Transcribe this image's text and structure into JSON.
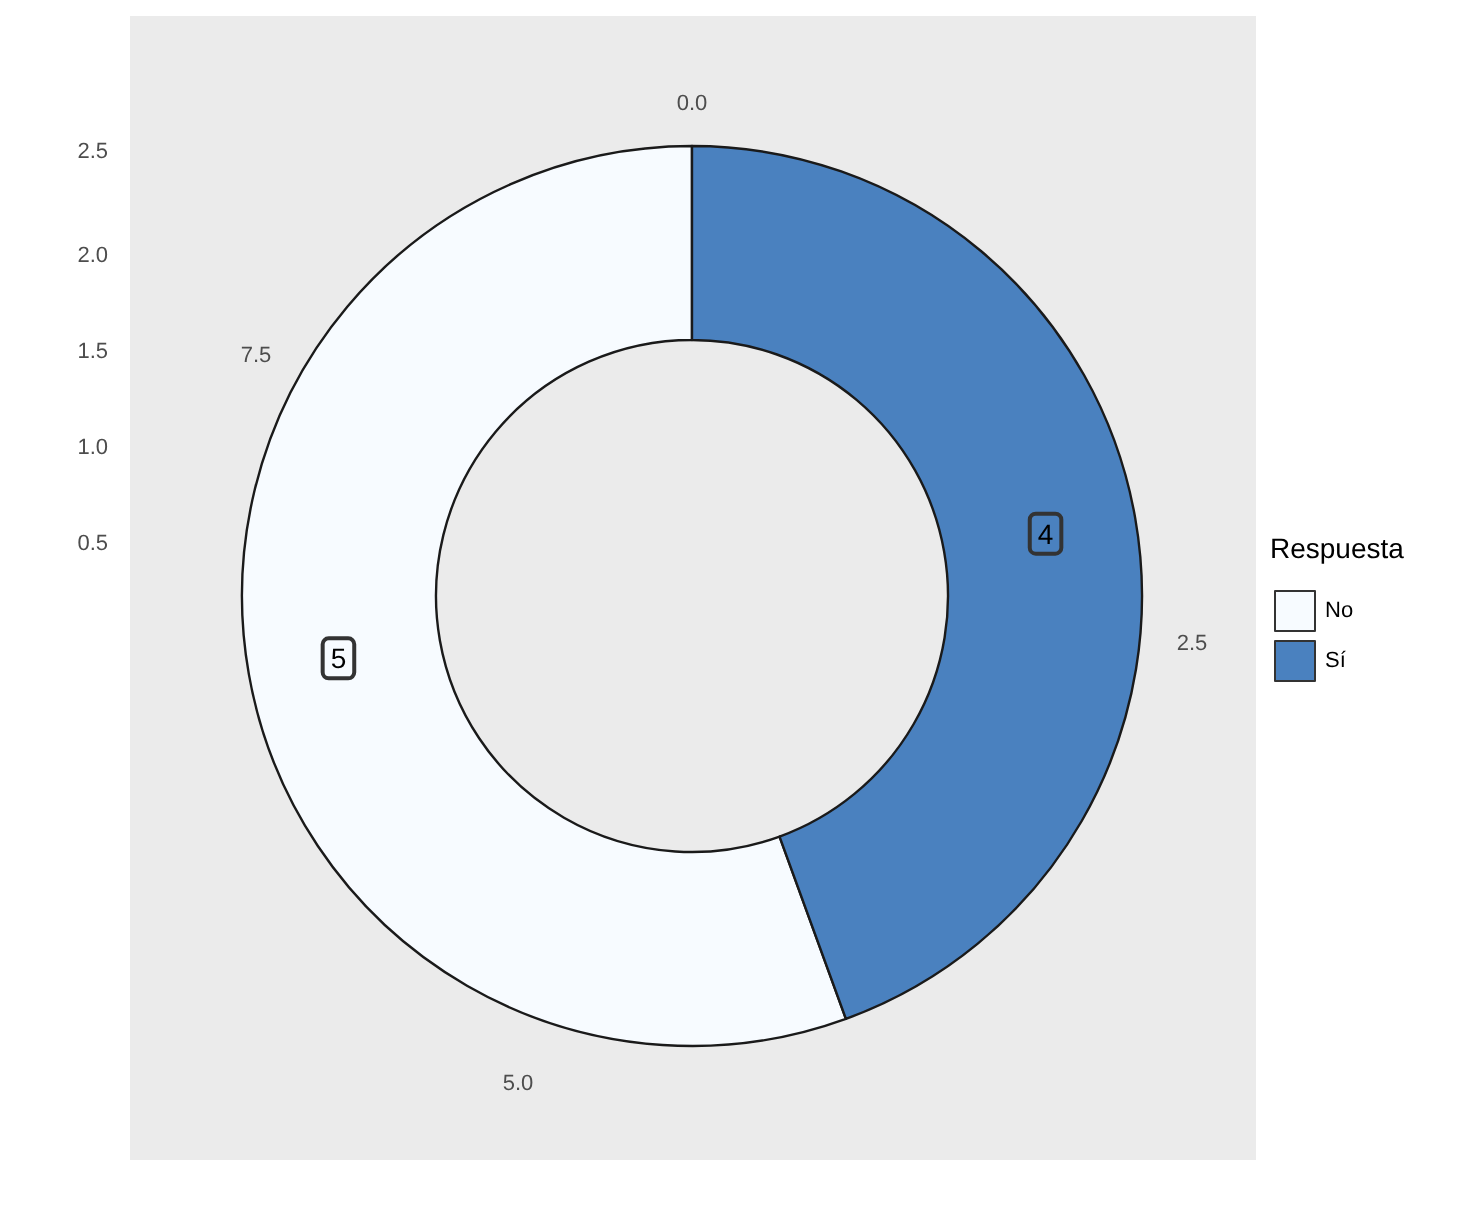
{
  "chart_data": {
    "type": "donut",
    "legend_title": "Respuesta",
    "categories": [
      "No",
      "Sí"
    ],
    "values": [
      5,
      4
    ],
    "colors": [
      "#f7fbff",
      "#4a81bf"
    ],
    "data_labels": true,
    "legend": "right",
    "annotations": [
      "0.0",
      "2.5",
      "5.0",
      "7.5",
      "2.5",
      "2.0",
      "1.5",
      "1.0",
      "0.5"
    ]
  }
}
